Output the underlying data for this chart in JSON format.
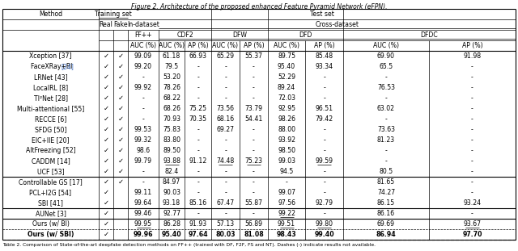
{
  "title": "Figure 2. Architecture of the proposed enhanced Feature Pyramid Network (eFPN).",
  "rows": [
    {
      "method": "Xception [37]",
      "real": true,
      "fake": true,
      "ff_auc": "99.09",
      "cdf2_auc": "61.18",
      "cdf2_ap": "66.93",
      "dfw_auc": "65.29",
      "dfw_ap": "55.37",
      "dfd_auc": "89.75",
      "dfd_ap": "85.48",
      "dfdc_auc": "69.90",
      "dfdc_ap": "91.98"
    },
    {
      "method": "FaceXRay+BI [24]",
      "real": true,
      "fake": true,
      "ff_auc": "99.20",
      "cdf2_auc": "79.5",
      "cdf2_ap": "-",
      "dfw_auc": "-",
      "dfw_ap": "-",
      "dfd_auc": "95.40",
      "dfd_ap": "93.34",
      "dfdc_auc": "65.5",
      "dfdc_ap": "-",
      "blue_ref": true
    },
    {
      "method": "LRNet [43]",
      "real": true,
      "fake": true,
      "ff_auc": "-",
      "cdf2_auc": "53.20",
      "cdf2_ap": "-",
      "dfw_auc": "-",
      "dfw_ap": "-",
      "dfd_auc": "52.29",
      "dfd_ap": "-",
      "dfdc_auc": "-",
      "dfdc_ap": "-"
    },
    {
      "method": "LocalRL [8]",
      "real": true,
      "fake": true,
      "ff_auc": "99.92",
      "cdf2_auc": "78.26",
      "cdf2_ap": "-",
      "dfw_auc": "-",
      "dfw_ap": "-",
      "dfd_auc": "89.24",
      "dfd_ap": "-",
      "dfdc_auc": "76.53",
      "dfdc_ap": "-"
    },
    {
      "method": "TI²Net [28]",
      "real": true,
      "fake": true,
      "ff_auc": "-",
      "cdf2_auc": "68.22",
      "cdf2_ap": "-",
      "dfw_auc": "-",
      "dfw_ap": "-",
      "dfd_auc": "72.03",
      "dfd_ap": "-",
      "dfdc_auc": "-",
      "dfdc_ap": "-"
    },
    {
      "method": "Multi-attentional [55]",
      "real": true,
      "fake": true,
      "ff_auc": "-",
      "cdf2_auc": "68.26",
      "cdf2_ap": "75.25",
      "dfw_auc": "73.56",
      "dfw_ap": "73.79",
      "dfd_auc": "92.95",
      "dfd_ap": "96.51",
      "dfdc_auc": "63.02",
      "dfdc_ap": "-"
    },
    {
      "method": "RECCE [6]",
      "real": true,
      "fake": true,
      "ff_auc": "-",
      "cdf2_auc": "70.93",
      "cdf2_ap": "70.35",
      "dfw_auc": "68.16",
      "dfw_ap": "54.41",
      "dfd_auc": "98.26",
      "dfd_ap": "79.42",
      "dfdc_auc": "-",
      "dfdc_ap": "-"
    },
    {
      "method": "SFDG [50]",
      "real": true,
      "fake": true,
      "ff_auc": "99.53",
      "cdf2_auc": "75.83",
      "cdf2_ap": "-",
      "dfw_auc": "69.27",
      "dfw_ap": "-",
      "dfd_auc": "88.00",
      "dfd_ap": "-",
      "dfdc_auc": "73.63",
      "dfdc_ap": "-"
    },
    {
      "method": "EIC+IIE [20]",
      "real": true,
      "fake": true,
      "ff_auc": "99.32",
      "cdf2_auc": "83.80",
      "cdf2_ap": "-",
      "dfw_auc": "-",
      "dfw_ap": "-",
      "dfd_auc": "93.92",
      "dfd_ap": "-",
      "dfdc_auc": "81.23",
      "dfdc_ap": "-"
    },
    {
      "method": "AltFreezing [52]",
      "real": true,
      "fake": true,
      "ff_auc": "98.6",
      "cdf2_auc": "89.50",
      "cdf2_ap": "-",
      "dfw_auc": "-",
      "dfw_ap": "-",
      "dfd_auc": "98.50",
      "dfd_ap": "-",
      "dfdc_auc": "-",
      "dfdc_ap": "-"
    },
    {
      "method": "CADDM [14]",
      "real": true,
      "fake": true,
      "ff_auc": "99.79",
      "cdf2_auc": "93.88",
      "cdf2_ap": "91.12",
      "dfw_auc": "74.48",
      "dfw_ap": "75.23",
      "dfd_auc": "99.03",
      "dfd_ap": "99.59",
      "dfdc_auc": "-",
      "dfdc_ap": "-",
      "ul_cdf2_auc": true,
      "ul_dfw_auc": true,
      "ul_dfw_ap": true,
      "ul_dfd_ap": true
    },
    {
      "method": "UCF [53]",
      "real": true,
      "fake": true,
      "ff_auc": "-",
      "cdf2_auc": "82.4",
      "cdf2_ap": "-",
      "dfw_auc": "-",
      "dfw_ap": "-",
      "dfd_auc": "94.5",
      "dfd_ap": "-",
      "dfdc_auc": "80.5",
      "dfdc_ap": "-"
    },
    {
      "method": "Controllable GS [17]",
      "real": true,
      "fake": true,
      "ff_auc": "-",
      "cdf2_auc": "84.97",
      "cdf2_ap": "-",
      "dfw_auc": "-",
      "dfw_ap": "-",
      "dfd_auc": "-",
      "dfd_ap": "-",
      "dfdc_auc": "81.65",
      "dfdc_ap": "-"
    },
    {
      "method": "PCL+I2G [54]",
      "real": true,
      "fake": false,
      "ff_auc": "99.11",
      "cdf2_auc": "90.03",
      "cdf2_ap": "-",
      "dfw_auc": "-",
      "dfw_ap": "-",
      "dfd_auc": "99.07",
      "dfd_ap": "-",
      "dfdc_auc": "74.27",
      "dfdc_ap": "-"
    },
    {
      "method": "SBI [41]",
      "real": true,
      "fake": false,
      "ff_auc": "99.64",
      "cdf2_auc": "93.18",
      "cdf2_ap": "85.16",
      "dfw_auc": "67.47",
      "dfw_ap": "55.87",
      "dfd_auc": "97.56",
      "dfd_ap": "92.79",
      "dfdc_auc": "86.15",
      "dfdc_ap": "93.24"
    },
    {
      "method": "AUNet [3]",
      "real": true,
      "fake": false,
      "ff_auc": "99.46",
      "cdf2_auc": "92.77",
      "cdf2_ap": "-",
      "dfw_auc": "-",
      "dfw_ap": "-",
      "dfd_auc": "99.22",
      "dfd_ap": "-",
      "dfdc_auc": "86.16",
      "dfdc_ap": "-",
      "ul_dfd_auc": true
    },
    {
      "method": "Ours (w/ BI)",
      "real": true,
      "fake": false,
      "ff_auc": "99.95",
      "cdf2_auc": "86.28",
      "cdf2_ap": "91.93",
      "dfw_auc": "57.13",
      "dfw_ap": "56.89",
      "dfd_auc": "99.51",
      "dfd_ap": "99.80",
      "dfdc_auc": "69.69",
      "dfdc_ap": "93.67",
      "ul_ff_auc": true,
      "ul_dfd_auc": true,
      "ul_dfd_ap": true,
      "ul_dfdc_ap": true,
      "is_ours": true,
      "dash_style": "solid"
    },
    {
      "method": "Ours (w/ SBI)",
      "real": true,
      "fake": false,
      "ff_auc": "99.96",
      "cdf2_auc": "95.40",
      "cdf2_ap": "97.64",
      "dfw_auc": "80.03",
      "dfw_ap": "81.08",
      "dfd_auc": "98.43",
      "dfd_ap": "99.40",
      "dfdc_auc": "86.94",
      "dfdc_ap": "97.70",
      "is_ours": true,
      "dash_style": "dashed",
      "bold": true
    }
  ],
  "note": "Table 2. Comparison of State-of-the-art deepfake detection methods on FF++ (trained with DF, F2F, FS and NT). Dashes (-) indicate results not available.",
  "colors": {
    "black": "#000000",
    "blue_ref": "#4472c4",
    "bg": "#ffffff"
  }
}
